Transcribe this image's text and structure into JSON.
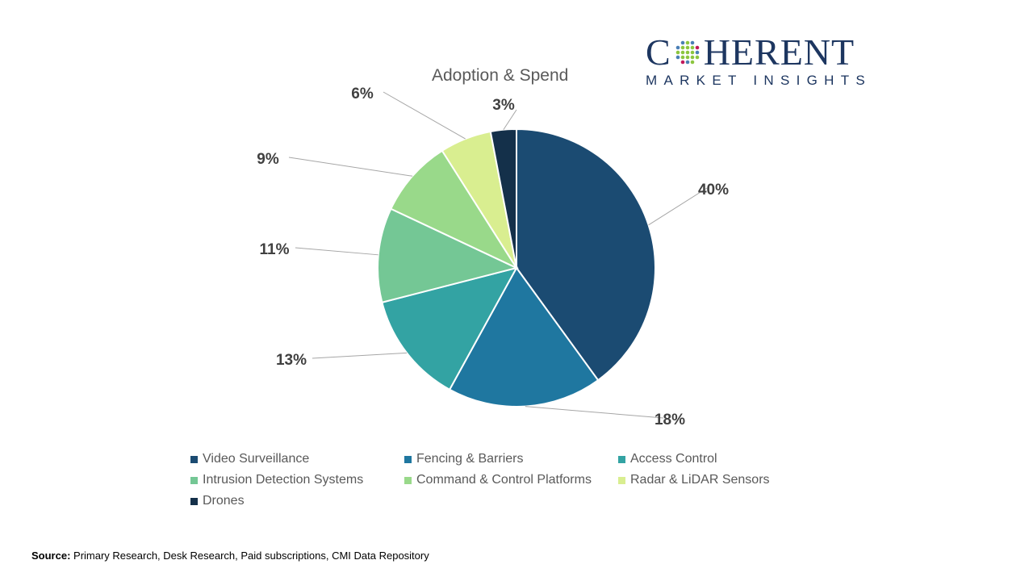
{
  "logo": {
    "brand": "COHERENT",
    "tagline": "MARKET INSIGHTS"
  },
  "source": {
    "label": "Source:",
    "text": " Primary Research, Desk Research, Paid subscriptions, CMI Data Repository"
  },
  "chart_data": {
    "type": "pie",
    "title": "Adoption & Spend",
    "categories": [
      "Video Surveillance",
      "Fencing & Barriers",
      "Access Control",
      "Intrusion Detection Systems",
      "Command & Control Platforms",
      "Radar & LiDAR Sensors",
      "Drones"
    ],
    "values": [
      40,
      18,
      13,
      11,
      9,
      6,
      3
    ],
    "labels": [
      "40%",
      "18%",
      "13%",
      "11%",
      "9%",
      "6%",
      "3%"
    ],
    "colors": [
      "#1b4b72",
      "#1f77a0",
      "#33a3a3",
      "#74c795",
      "#99d98a",
      "#d9ee90",
      "#14304a"
    ],
    "legend_position": "bottom"
  }
}
